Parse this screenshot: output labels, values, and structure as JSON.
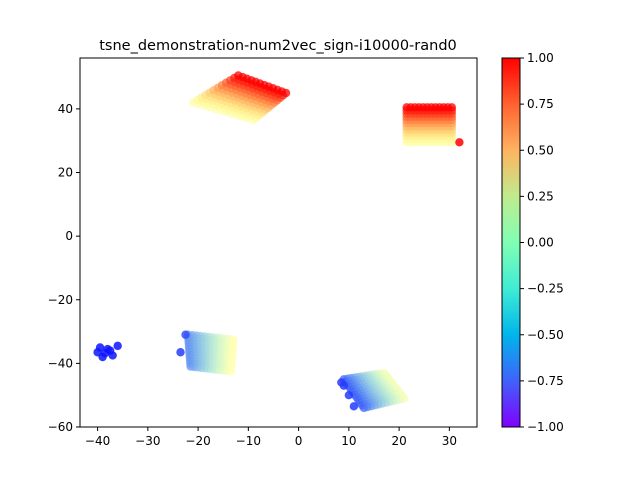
{
  "chart_data": {
    "type": "scatter",
    "title": "tsne_demonstration-num2vec_sign-i10000-rand0",
    "xlabel": "",
    "ylabel": "",
    "xlim": [
      -43.5,
      35.5
    ],
    "ylim": [
      -60,
      56
    ],
    "x_ticks": [
      -40,
      -30,
      -20,
      -10,
      0,
      10,
      20,
      30
    ],
    "y_ticks": [
      -60,
      -40,
      -20,
      0,
      20,
      40
    ],
    "grid": false,
    "colormap": "rainbow",
    "colorbar": {
      "range": [
        -1.0,
        1.0
      ],
      "ticks": [
        -1.0,
        -0.75,
        -0.5,
        -0.25,
        0.0,
        0.25,
        0.5,
        0.75,
        1.0
      ],
      "tick_labels": [
        "−1.00",
        "−0.75",
        "−0.50",
        "−0.25",
        "0.00",
        "0.25",
        "0.50",
        "0.75",
        "1.00"
      ]
    },
    "clusters": [
      {
        "id": "top-left",
        "corners": {
          "p00": [
            -21,
            42
          ],
          "p10": [
            -12,
            50.5
          ],
          "p01": [
            -9,
            36.5
          ],
          "p11": [
            -2.5,
            45
          ]
        },
        "value_range": [
          0.05,
          1.0
        ],
        "gradient_axis": "u"
      },
      {
        "id": "top-right",
        "corners": {
          "p00": [
            21.5,
            29.5
          ],
          "p10": [
            21.5,
            40.5
          ],
          "p01": [
            30.5,
            29.5
          ],
          "p11": [
            30.5,
            40.5
          ]
        },
        "value_range": [
          0.05,
          1.0
        ],
        "gradient_axis": "u"
      },
      {
        "id": "bottom-left",
        "corners": {
          "p00": [
            -22,
            -31
          ],
          "p10": [
            -21.5,
            -41
          ],
          "p01": [
            -13,
            -32.5
          ],
          "p11": [
            -13.5,
            -42.5
          ]
        },
        "value_range": [
          -0.6,
          0.0
        ],
        "gradient_axis": "v"
      },
      {
        "id": "bottom-right",
        "corners": {
          "p00": [
            9,
            -45
          ],
          "p10": [
            13,
            -54
          ],
          "p01": [
            17,
            -43
          ],
          "p11": [
            21,
            -51
          ]
        },
        "value_range": [
          -0.75,
          -0.05
        ],
        "gradient_axis": "v"
      }
    ],
    "extra_points": [
      {
        "x": 32,
        "y": 29.5,
        "value": 1.0
      },
      {
        "x": -40,
        "y": -36.5,
        "value": -0.95
      },
      {
        "x": -39,
        "y": -38,
        "value": -0.95
      },
      {
        "x": -38,
        "y": -35.5,
        "value": -0.95
      },
      {
        "x": -37,
        "y": -37.5,
        "value": -0.95
      },
      {
        "x": -36,
        "y": -34.5,
        "value": -0.95
      },
      {
        "x": -39.5,
        "y": -35,
        "value": -0.95
      },
      {
        "x": -38.5,
        "y": -36.8,
        "value": -0.95
      },
      {
        "x": -37.5,
        "y": -36,
        "value": -0.95
      },
      {
        "x": -23.5,
        "y": -36.5,
        "value": -0.85
      },
      {
        "x": -22.5,
        "y": -31,
        "value": -0.8
      },
      {
        "x": 9,
        "y": -47,
        "value": -0.85
      },
      {
        "x": 8.5,
        "y": -46,
        "value": -0.85
      },
      {
        "x": 11,
        "y": -53.5,
        "value": -0.85
      },
      {
        "x": 10,
        "y": -50,
        "value": -0.85
      }
    ]
  }
}
